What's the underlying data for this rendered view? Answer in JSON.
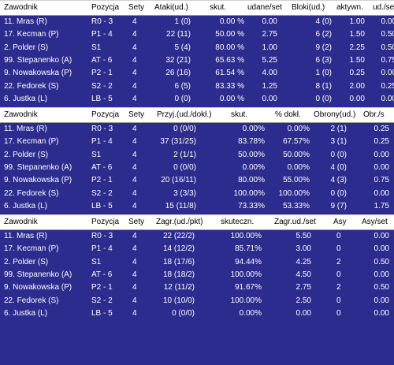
{
  "colors": {
    "background": "#2b2c8e",
    "header_bg": "#ffffff",
    "text": "#ffffff"
  },
  "tables": [
    {
      "headers": [
        "Zawodnik",
        "Pozycja",
        "Sety",
        "Ataki(ud.)",
        "skut.",
        "udane/set",
        "Bloki(ud.)",
        "aktywn.",
        "ud./se"
      ],
      "rows": [
        [
          "11. Mras (R)",
          "R0 - 3",
          "4",
          "1 (0)",
          "0.00 %",
          "0.00",
          "4 (0)",
          "1.00",
          "0.00"
        ],
        [
          "17. Kecman (P)",
          "P1 - 4",
          "4",
          "22 (11)",
          "50.00 %",
          "2.75",
          "6 (2)",
          "1.50",
          "0.50"
        ],
        [
          "2. Polder (S)",
          "S1",
          "4",
          "5 (4)",
          "80.00 %",
          "1.00",
          "9 (2)",
          "2.25",
          "0.50"
        ],
        [
          "99. Stepanenko (A)",
          "AT - 6",
          "4",
          "32 (21)",
          "65.63 %",
          "5.25",
          "6 (3)",
          "1.50",
          "0.75"
        ],
        [
          "9. Nowakowska (P)",
          "P2 - 1",
          "4",
          "26 (16)",
          "61.54 %",
          "4.00",
          "1 (0)",
          "0.25",
          "0.00"
        ],
        [
          "22. Fedorek (S)",
          "S2 - 2",
          "4",
          "6 (5)",
          "83.33 %",
          "1.25",
          "8 (1)",
          "2.00",
          "0.25"
        ],
        [
          "6. Justka (L)",
          "LB - 5",
          "4",
          "0 (0)",
          "0.00 %",
          "0.00",
          "0 (0)",
          "0.00",
          "0.00"
        ]
      ]
    },
    {
      "headers": [
        "Zawodnik",
        "Pozycja",
        "Sety",
        "Przyj.(ud./dokł.)",
        "skut.",
        "% dokł.",
        "Obrony(ud.)",
        "Obr./s"
      ],
      "rows": [
        [
          "11. Mras (R)",
          "R0 - 3",
          "4",
          "0 (0/0)",
          "0.00%",
          "0.00%",
          "2 (1)",
          "0.25"
        ],
        [
          "17. Kecman (P)",
          "P1 - 4",
          "4",
          "37 (31/25)",
          "83.78%",
          "67.57%",
          "3 (1)",
          "0.25"
        ],
        [
          "2. Polder (S)",
          "S1",
          "4",
          "2 (1/1)",
          "50.00%",
          "50.00%",
          "0 (0)",
          "0.00"
        ],
        [
          "99. Stepanenko (A)",
          "AT - 6",
          "4",
          "0 (0/0)",
          "0.00%",
          "0.00%",
          "4 (0)",
          "0.00"
        ],
        [
          "9. Nowakowska (P)",
          "P2 - 1",
          "4",
          "20 (16/11)",
          "80.00%",
          "55.00%",
          "4 (3)",
          "0.75"
        ],
        [
          "22. Fedorek (S)",
          "S2 - 2",
          "4",
          "3 (3/3)",
          "100.00%",
          "100.00%",
          "0 (0)",
          "0.00"
        ],
        [
          "6. Justka (L)",
          "LB - 5",
          "4",
          "15 (11/8)",
          "73.33%",
          "53.33%",
          "9 (7)",
          "1.75"
        ]
      ]
    },
    {
      "headers": [
        "Zawodnik",
        "Pozycja",
        "Sety",
        "Zagr.(ud./pkt)",
        "skuteczn.",
        "Zagr.ud./set",
        "Asy",
        "Asy/set"
      ],
      "rows": [
        [
          "11. Mras (R)",
          "R0 - 3",
          "4",
          "22 (22/2)",
          "100.00%",
          "5.50",
          "0",
          "0.00"
        ],
        [
          "17. Kecman (P)",
          "P1 - 4",
          "4",
          "14 (12/2)",
          "85.71%",
          "3.00",
          "0",
          "0.00"
        ],
        [
          "2. Polder (S)",
          "S1",
          "4",
          "18 (17/6)",
          "94.44%",
          "4.25",
          "2",
          "0.50"
        ],
        [
          "99. Stepanenko (A)",
          "AT - 6",
          "4",
          "18 (18/2)",
          "100.00%",
          "4.50",
          "0",
          "0.00"
        ],
        [
          "9. Nowakowska (P)",
          "P2 - 1",
          "4",
          "12 (11/2)",
          "91.67%",
          "2.75",
          "2",
          "0.50"
        ],
        [
          "22. Fedorek (S)",
          "S2 - 2",
          "4",
          "10 (10/0)",
          "100.00%",
          "2.50",
          "0",
          "0.00"
        ],
        [
          "6. Justka (L)",
          "LB - 5",
          "4",
          "0 (0/0)",
          "0.00%",
          "0.00",
          "0",
          "0.00"
        ]
      ]
    }
  ]
}
